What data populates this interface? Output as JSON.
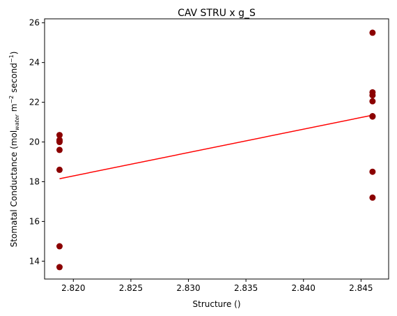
{
  "chart_data": {
    "type": "scatter",
    "title": "CAV STRU x g_S",
    "xlabel": "Structure ()",
    "ylabel": {
      "prefix": "Stomatal Conductance (mol",
      "sub": "water",
      "mid1": " m",
      "sup1": "−2",
      "mid2": " second",
      "sup2": "−1",
      "suffix": ")"
    },
    "xlim": [
      2.8175,
      2.8474
    ],
    "ylim": [
      13.1,
      26.2
    ],
    "x_ticks": [
      2.82,
      2.825,
      2.83,
      2.835,
      2.84,
      2.845
    ],
    "x_tick_labels": [
      "2.820",
      "2.825",
      "2.830",
      "2.835",
      "2.840",
      "2.845"
    ],
    "y_ticks": [
      14,
      16,
      18,
      20,
      22,
      24,
      26
    ],
    "y_tick_labels": [
      "14",
      "16",
      "18",
      "20",
      "22",
      "24",
      "26"
    ],
    "grid": false,
    "points": {
      "color": "#8b0000",
      "x": [
        2.8188,
        2.8188,
        2.8188,
        2.8188,
        2.8188,
        2.8188,
        2.8188,
        2.8188,
        2.846,
        2.846,
        2.846,
        2.846,
        2.846,
        2.846,
        2.846,
        2.846
      ],
      "y": [
        20.35,
        20.05,
        20.0,
        19.6,
        18.6,
        14.75,
        13.7,
        20.1,
        25.5,
        22.5,
        22.35,
        22.05,
        21.3,
        18.5,
        17.2,
        21.28
      ]
    },
    "fit_line": {
      "color": "#ff0000",
      "x": [
        2.8188,
        2.846
      ],
      "y": [
        18.15,
        21.35
      ]
    }
  }
}
